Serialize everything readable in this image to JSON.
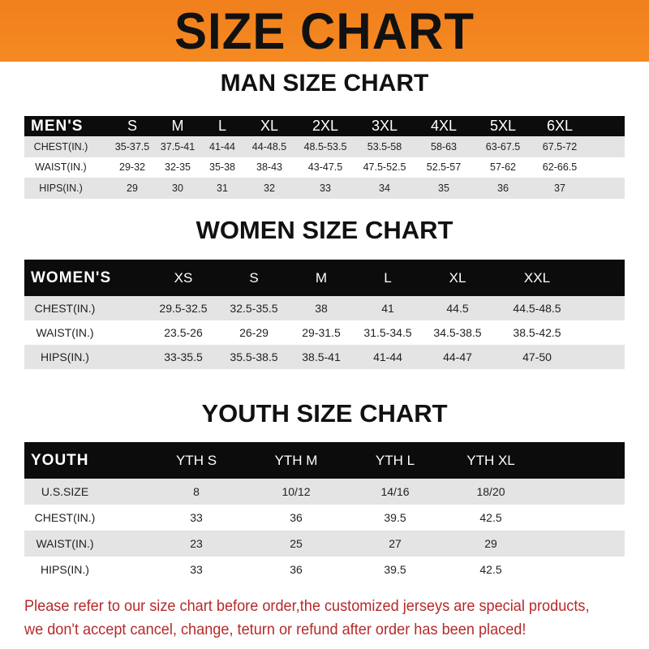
{
  "header": {
    "title": "SIZE CHART",
    "color": "#f58a22"
  },
  "men": {
    "title": "MAN SIZE CHART",
    "label": "MEN'S",
    "sizes": [
      "S",
      "M",
      "L",
      "XL",
      "2XL",
      "3XL",
      "4XL",
      "5XL",
      "6XL"
    ],
    "rows": [
      {
        "label": "CHEST(IN.)",
        "values": [
          "35-37.5",
          "37.5-41",
          "41-44",
          "44-48.5",
          "48.5-53.5",
          "53.5-58",
          "58-63",
          "63-67.5",
          "67.5-72"
        ]
      },
      {
        "label": "WAIST(IN.)",
        "values": [
          "29-32",
          "32-35",
          "35-38",
          "38-43",
          "43-47.5",
          "47.5-52.5",
          "52.5-57",
          "57-62",
          "62-66.5"
        ]
      },
      {
        "label": "HIPS(IN.)",
        "values": [
          "29",
          "30",
          "31",
          "32",
          "33",
          "34",
          "35",
          "36",
          "37"
        ]
      }
    ]
  },
  "women": {
    "title": "WOMEN SIZE CHART",
    "label": "WOMEN'S",
    "sizes": [
      "XS",
      "S",
      "M",
      "L",
      "XL",
      "XXL"
    ],
    "rows": [
      {
        "label": "CHEST(IN.)",
        "values": [
          "29.5-32.5",
          "32.5-35.5",
          "38",
          "41",
          "44.5",
          "44.5-48.5"
        ]
      },
      {
        "label": "WAIST(IN.)",
        "values": [
          "23.5-26",
          "26-29",
          "29-31.5",
          "31.5-34.5",
          "34.5-38.5",
          "38.5-42.5"
        ]
      },
      {
        "label": "HIPS(IN.)",
        "values": [
          "33-35.5",
          "35.5-38.5",
          "38.5-41",
          "41-44",
          "44-47",
          "47-50"
        ]
      }
    ]
  },
  "youth": {
    "title": "YOUTH SIZE CHART",
    "label": "YOUTH",
    "sizes": [
      "YTH S",
      "YTH M",
      "YTH L",
      "YTH XL"
    ],
    "rows": [
      {
        "label": "U.S.SIZE",
        "values": [
          "8",
          "10/12",
          "14/16",
          "18/20"
        ]
      },
      {
        "label": "CHEST(IN.)",
        "values": [
          "33",
          "36",
          "39.5",
          "42.5"
        ]
      },
      {
        "label": "WAIST(IN.)",
        "values": [
          "23",
          "25",
          "27",
          "29"
        ]
      },
      {
        "label": "HIPS(IN.)",
        "values": [
          "33",
          "36",
          "39.5",
          "42.5"
        ]
      }
    ]
  },
  "notice": {
    "line1": "Please refer to our size chart before order,the customized jerseys are special products,",
    "line2": "we don't accept cancel, change, teturn or refund after order has been placed!",
    "color": "#b52a2a"
  }
}
